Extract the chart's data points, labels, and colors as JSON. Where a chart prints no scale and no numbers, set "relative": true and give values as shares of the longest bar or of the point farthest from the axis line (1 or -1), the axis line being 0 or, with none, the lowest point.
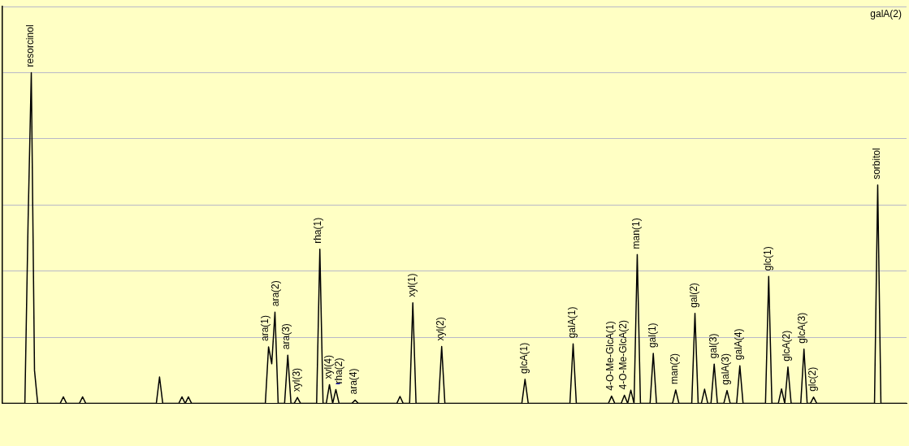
{
  "chart_data": {
    "type": "line",
    "relative": true,
    "color": "#000000",
    "grid": "y",
    "marker": "none",
    "line_style": "solid",
    "categories": [
      null,
      null,
      null,
      null,
      null,
      null,
      null,
      null,
      null,
      null,
      null,
      null,
      null,
      null,
      null,
      null,
      null,
      null,
      null,
      null,
      null,
      null,
      null,
      null,
      null,
      null,
      null,
      null,
      null,
      null,
      null,
      null,
      null,
      null,
      null,
      null,
      null,
      null,
      null,
      null,
      null,
      null,
      null,
      null,
      null,
      null,
      null,
      null,
      null,
      null,
      null,
      null,
      null,
      null,
      null,
      null,
      null,
      null,
      null,
      null,
      null,
      null,
      null,
      null,
      null,
      null,
      null,
      null,
      null,
      null,
      null,
      null,
      null,
      null,
      null,
      null,
      null,
      null,
      null,
      null,
      null,
      null,
      null,
      null,
      null,
      null,
      null,
      null,
      null,
      null,
      null,
      null,
      null,
      null,
      null,
      null,
      null,
      null,
      null,
      null,
      null,
      null,
      null,
      null,
      null,
      null,
      null,
      null,
      null,
      null,
      null,
      null,
      null,
      null,
      null,
      null,
      null,
      null,
      null,
      null,
      null,
      null,
      null,
      null,
      null,
      null,
      null,
      null,
      null,
      null,
      null,
      null,
      null,
      null,
      null,
      null,
      null,
      null,
      null,
      null,
      null,
      null,
      null,
      null,
      null,
      null,
      null,
      null,
      null,
      null,
      null,
      null,
      null,
      null,
      null,
      null,
      null,
      null,
      null,
      null,
      null,
      null,
      null,
      null,
      null,
      null,
      null,
      null,
      null,
      null,
      null,
      null,
      null,
      null,
      null,
      null,
      null,
      null,
      null,
      null,
      null,
      null,
      null,
      null,
      null,
      null,
      null,
      null,
      null,
      null,
      null,
      null,
      null,
      null,
      null,
      null,
      null,
      null,
      null,
      null,
      null,
      null,
      null,
      null,
      null,
      null,
      null,
      null,
      null,
      null,
      null,
      null,
      null,
      null,
      null,
      null,
      null,
      null,
      null,
      null,
      null,
      null,
      null,
      null,
      null,
      null,
      null,
      null,
      null,
      null,
      null,
      null,
      null,
      null,
      null,
      null,
      null,
      null,
      null,
      null,
      null,
      null,
      null,
      null,
      null,
      null,
      null,
      null,
      null,
      null,
      null,
      null,
      null,
      null,
      null,
      null,
      null,
      null,
      null,
      null,
      null,
      null,
      null,
      null,
      null,
      null,
      null,
      null,
      null,
      null,
      null,
      null,
      null,
      null,
      null,
      null,
      null,
      null,
      null,
      null,
      null,
      null,
      null
    ],
    "series": [
      {
        "values": [
          0,
          0,
          0,
          0,
          0,
          0,
          0,
          0,
          0.55,
          1,
          0.1,
          0,
          0,
          0,
          0,
          0,
          0,
          0,
          0,
          0.02,
          0,
          0,
          0,
          0,
          0,
          0.02,
          0,
          0,
          0,
          0,
          0,
          0,
          0,
          0,
          0,
          0,
          0,
          0,
          0,
          0,
          0,
          0,
          0,
          0,
          0,
          0,
          0,
          0,
          0,
          0.08,
          0,
          0,
          0,
          0,
          0,
          0,
          0.02,
          0,
          0.02,
          0,
          0,
          0,
          0,
          0,
          0,
          0,
          0,
          0,
          0,
          0,
          0,
          0,
          0,
          0,
          0,
          0,
          0,
          0,
          0,
          0,
          0,
          0,
          0,
          0.171,
          0.12,
          0.276,
          0,
          0,
          0,
          0.146,
          0,
          0,
          0.018,
          0,
          0,
          0,
          0,
          0,
          0,
          0.466,
          0,
          0,
          0.057,
          0,
          0.042,
          0,
          0,
          0,
          0,
          0,
          0.01,
          0,
          0,
          0,
          0,
          0,
          0,
          0,
          0,
          0,
          0,
          0,
          0,
          0,
          0.021,
          0,
          0,
          0,
          0.304,
          0,
          0,
          0,
          0,
          0,
          0,
          0,
          0,
          0.172,
          0,
          0,
          0,
          0,
          0,
          0,
          0,
          0,
          0,
          0,
          0,
          0,
          0,
          0,
          0,
          0,
          0,
          0,
          0,
          0,
          0,
          0,
          0,
          0,
          0,
          0.073,
          0,
          0,
          0,
          0,
          0,
          0,
          0,
          0,
          0,
          0,
          0,
          0,
          0,
          0,
          0.18,
          0,
          0,
          0,
          0,
          0,
          0,
          0,
          0,
          0,
          0,
          0,
          0.022,
          0,
          0,
          0,
          0.025,
          0,
          0.04,
          0,
          0.45,
          0,
          0,
          0,
          0,
          0.151,
          0,
          0,
          0,
          0,
          0,
          0,
          0.041,
          0,
          0,
          0,
          0,
          0,
          0.272,
          0,
          0,
          0.043,
          0,
          0,
          0.119,
          0,
          0,
          0,
          0.039,
          0,
          0,
          0,
          0.114,
          0,
          0,
          0,
          0,
          0,
          0,
          0,
          0,
          0.384,
          0,
          0,
          0,
          0.044,
          0,
          0.11,
          0,
          0,
          0,
          0,
          0.164,
          0,
          0,
          0.019,
          0,
          0,
          0,
          0,
          0,
          0,
          0,
          0,
          0,
          0,
          0,
          0,
          0,
          0,
          0,
          0,
          0,
          0,
          0,
          0.66,
          0,
          0,
          0,
          0,
          0,
          0,
          0,
          0,
          0
        ]
      }
    ],
    "annotations": [
      {
        "text": "resorcinol",
        "y": 1
      },
      {
        "text": "ara(1)",
        "y": 0.171
      },
      {
        "text": "ara(2)",
        "y": 0.276
      },
      {
        "text": "ara(3)",
        "y": 0.146
      },
      {
        "text": "xyl(3)",
        "y": 0.018
      },
      {
        "text": "rha(1)",
        "y": 0.466
      },
      {
        "text": "xyl(4)",
        "y": 0.057
      },
      {
        "text": "rha(2)",
        "y": 0.042
      },
      {
        "text": "ara(4)",
        "y": 0.01
      },
      {
        "text": "xyl(1)",
        "y": 0.304
      },
      {
        "text": "xyl(2)",
        "y": 0.172
      },
      {
        "text": "glcA(1)",
        "y": 0.073
      },
      {
        "text": "galA(1)",
        "y": 0.18
      },
      {
        "text": "4-O-Me-GlcA(1)",
        "y": 0.022
      },
      {
        "text": "4-O-Me-GlcA(2)",
        "y": 0.025
      },
      "galA(2)",
      {
        "text": "man(1)",
        "y": 0.45
      },
      {
        "text": "gal(1)",
        "y": 0.151
      },
      {
        "text": "man(2)",
        "y": 0.041
      },
      {
        "text": "gal(2)",
        "y": 0.272
      },
      {
        "text": "gal(3)",
        "y": 0.119
      },
      {
        "text": "galA(3)",
        "y": 0.039
      },
      {
        "text": "galA(4)",
        "y": 0.114
      },
      {
        "text": "glc(1)",
        "y": 0.384
      },
      {
        "text": "glcA(2)",
        "y": 0.11
      },
      {
        "text": "glcA(3)",
        "y": 0.164
      },
      {
        "text": "glc(2)",
        "y": 0.019
      },
      {
        "text": "sorbitol",
        "y": 0.66
      }
    ]
  }
}
